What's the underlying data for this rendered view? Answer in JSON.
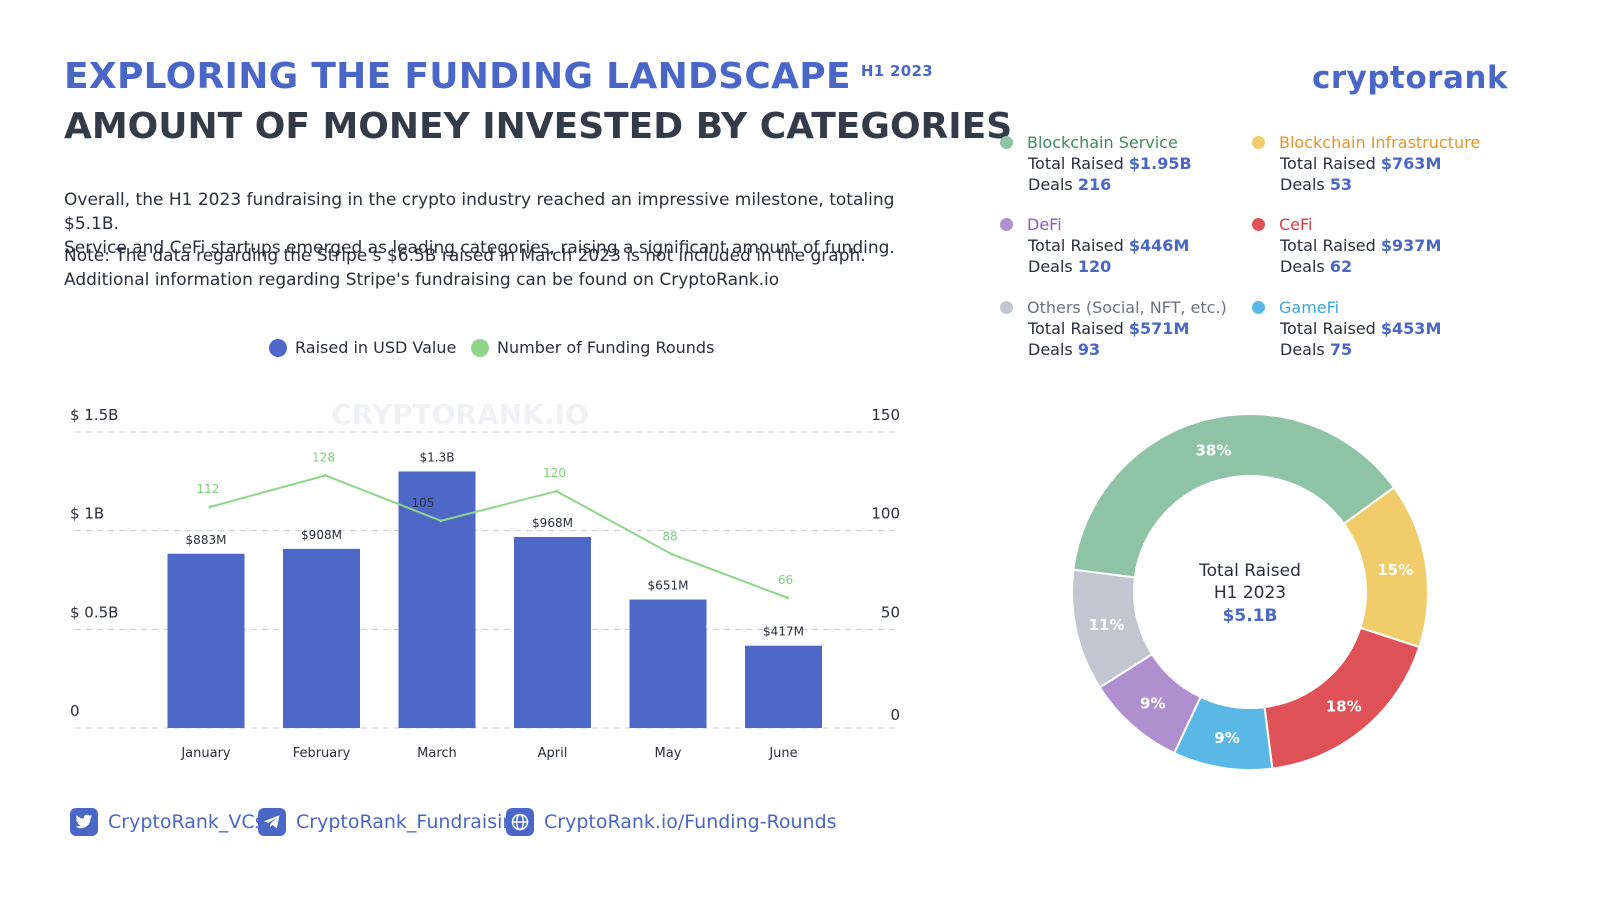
{
  "header": {
    "title": "EXPLORING THE FUNDING LANDSCAPE",
    "title_tag": "H1 2023",
    "subtitle": "AMOUNT OF MONEY INVESTED BY CATEGORIES",
    "brand": "cryptorank"
  },
  "description": {
    "p1_line1": "Overall, the H1 2023 fundraising in the crypto industry reached an impressive milestone, totaling $5.1B.",
    "p1_line2": "Service and CeFi startups emerged as leading categories, raising a significant amount of funding.",
    "p2_line1": "Note: The data regarding the Stripe’s $6.5B raised in March 2023 is not included in the graph.",
    "p2_line2": "Additional information regarding Stripe's fundraising can be found on CryptoRank.io"
  },
  "categories": [
    {
      "name": "Blockchain Service",
      "color": "#8ec3a6",
      "name_color": "#3f8a62",
      "raised_label": "Total Raised",
      "raised": "$1.95B",
      "deals_label": "Deals",
      "deals": "216"
    },
    {
      "name": "Blockchain Infrastructure",
      "color": "#f0cc6a",
      "name_color": "#e5962a",
      "raised_label": "Total Raised",
      "raised": "$763M",
      "deals_label": "Deals",
      "deals": "53"
    },
    {
      "name": "DeFi",
      "color": "#b08fcf",
      "name_color": "#8e5bbf",
      "raised_label": "Total Raised",
      "raised": "$446M",
      "deals_label": "Deals",
      "deals": "120"
    },
    {
      "name": "CeFi",
      "color": "#de5156",
      "name_color": "#d53f45",
      "raised_label": "Total Raised",
      "raised": "$937M",
      "deals_label": "Deals",
      "deals": "62"
    },
    {
      "name": "Others (Social, NFT, etc.)",
      "color": "#c2c6d0",
      "name_color": "#6c7280",
      "raised_label": "Total Raised",
      "raised": "$571M",
      "deals_label": "Deals",
      "deals": "93"
    },
    {
      "name": "GameFi",
      "color": "#5ab8e6",
      "name_color": "#3aa6de",
      "raised_label": "Total Raised",
      "raised": "$453M",
      "deals_label": "Deals",
      "deals": "75"
    }
  ],
  "legend": {
    "bar_label": "Raised in USD Value",
    "line_label": "Number of Funding Rounds"
  },
  "footer": {
    "twitter": "CryptoRank_VCs",
    "telegram": "CryptoRank_Fundraising",
    "web": "CryptoRank.io/Funding-Rounds"
  },
  "chart_data": [
    {
      "type": "bar",
      "categories": [
        "January",
        "February",
        "March",
        "April",
        "May",
        "June"
      ],
      "series": [
        {
          "name": "Raised in USD Value",
          "axis": "left",
          "values": [
            0.883,
            0.908,
            1.3,
            0.968,
            0.651,
            0.417
          ],
          "labels": [
            "$883M",
            "$908M",
            "$1.3B",
            "$968M",
            "$651M",
            "$417M"
          ],
          "color": "#4e68c8"
        },
        {
          "name": "Number of Funding Rounds",
          "type": "line",
          "axis": "right",
          "values": [
            112,
            128,
            105,
            120,
            88,
            66
          ],
          "color": "#8fd68a"
        }
      ],
      "y_left": {
        "lim": [
          0,
          1.5
        ],
        "ticks": [
          0,
          0.5,
          1,
          1.5
        ],
        "tick_labels": [
          "0",
          "$ 0.5B",
          "$ 1B",
          "$ 1.5B"
        ]
      },
      "y_right": {
        "lim": [
          0,
          150
        ],
        "ticks": [
          0,
          50,
          100,
          150
        ],
        "tick_labels": [
          "0",
          "50",
          "100",
          "150"
        ]
      },
      "watermark": "CRYPTORANK.IO",
      "grid": true,
      "legend_position": "top"
    },
    {
      "type": "pie",
      "labels": [
        "Blockchain Service",
        "Blockchain Infrastructure",
        "CeFi",
        "GameFi",
        "DeFi",
        "Others (Social, NFT, etc.)"
      ],
      "values": [
        38,
        15,
        18,
        9,
        9,
        11
      ],
      "value_labels": [
        "38%",
        "15%",
        "18%",
        "9%",
        "9%",
        "11%"
      ],
      "colors": [
        "#8ec3a6",
        "#f0cc6a",
        "#de5156",
        "#5ab8e6",
        "#b08fcf",
        "#c2c6d0"
      ],
      "center_line1": "Total Raised",
      "center_line2": "H1 2023",
      "center_value": "$5.1B"
    }
  ]
}
